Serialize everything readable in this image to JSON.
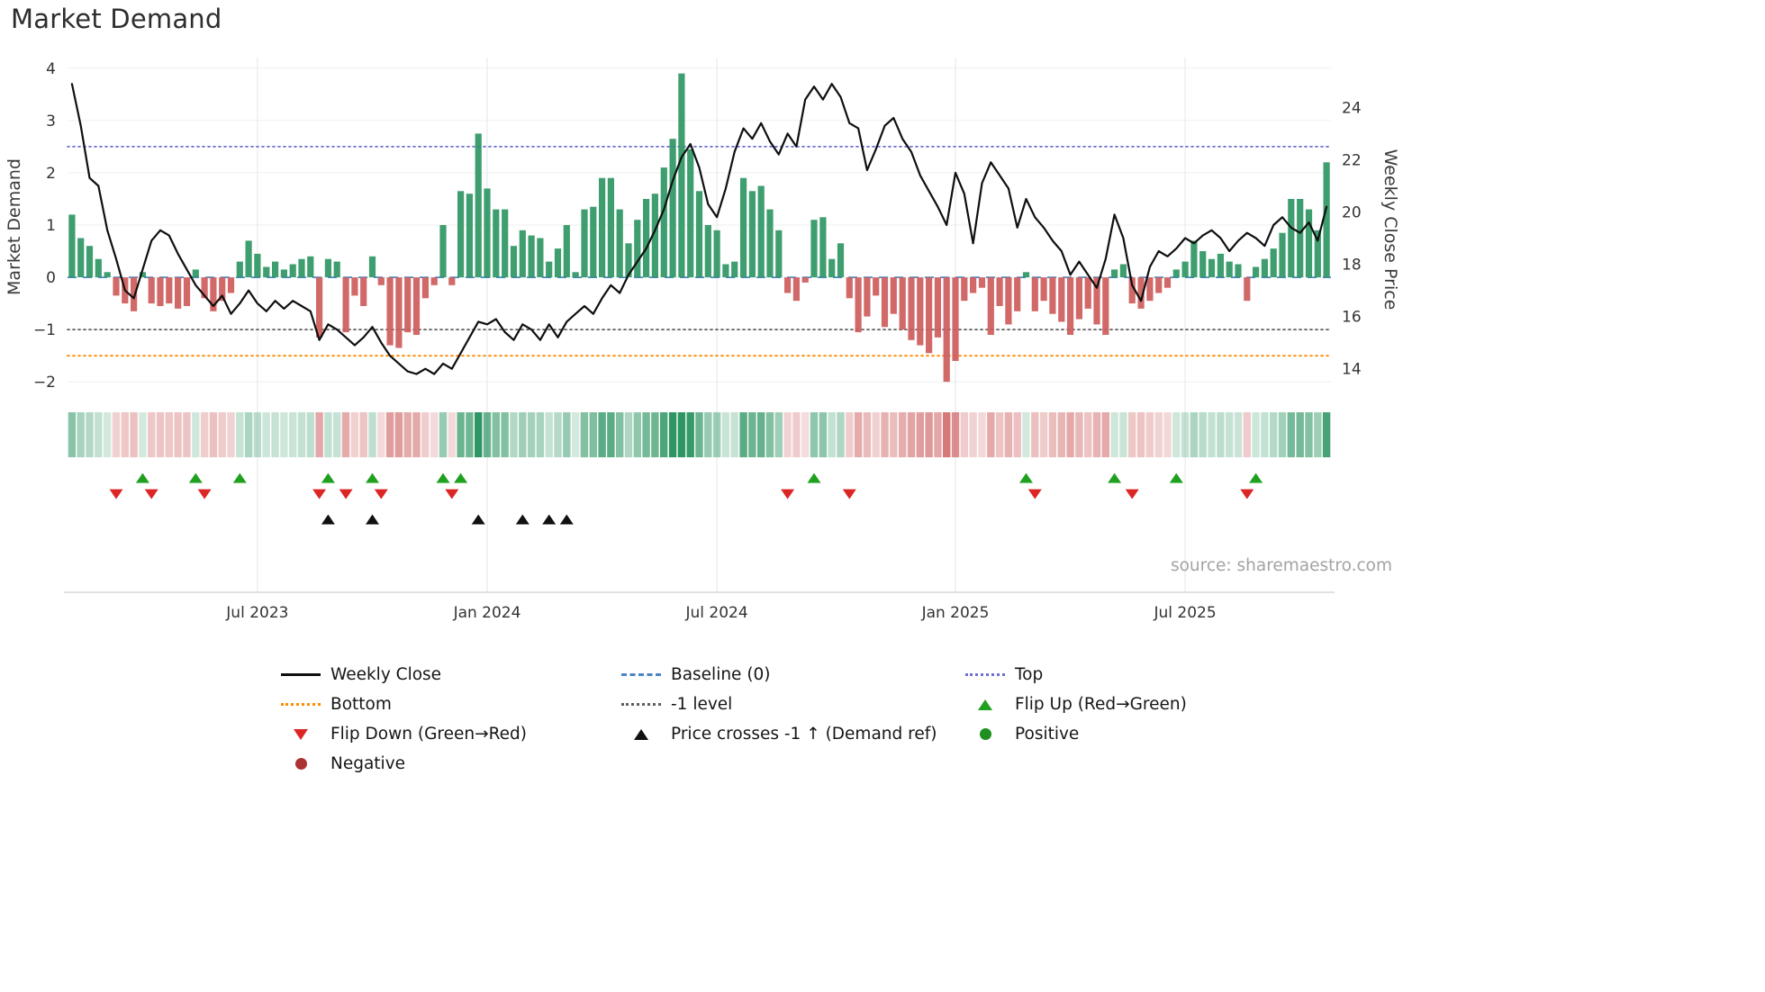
{
  "source_text": "source: sharemaestro.com",
  "chart_data": {
    "type": "bar+line",
    "title": "Market Demand",
    "ylabel_left": "Market Demand",
    "ylabel_right": "Weekly Close Price",
    "ylim_demand": [
      -2.1,
      4.1
    ],
    "ylim_price": [
      13.3,
      25.7
    ],
    "yticks_demand": [
      4,
      3,
      2,
      1,
      0,
      -1,
      -2
    ],
    "yticks_price": [
      24,
      22,
      20,
      18,
      16,
      14
    ],
    "x_axis": {
      "tick_labels": [
        "Jul 2023",
        "Jan 2024",
        "Jul 2024",
        "Jan 2025",
        "Jul 2025"
      ],
      "tick_weeks": [
        21,
        47,
        73,
        100,
        126
      ]
    },
    "levels": {
      "baseline": 0,
      "top": 2.5,
      "minus1_level": -1,
      "bottom": -1.5
    },
    "demand_series": {
      "name": "Market Demand",
      "values": [
        1.2,
        0.75,
        0.6,
        0.35,
        0.1,
        -0.35,
        -0.5,
        -0.65,
        0.1,
        -0.5,
        -0.55,
        -0.5,
        -0.6,
        -0.55,
        0.15,
        -0.4,
        -0.65,
        -0.45,
        -0.3,
        0.3,
        0.7,
        0.45,
        0.2,
        0.3,
        0.15,
        0.25,
        0.35,
        0.4,
        -1.15,
        0.35,
        0.3,
        -1.05,
        -0.35,
        -0.55,
        0.4,
        -0.15,
        -1.3,
        -1.35,
        -1.05,
        -1.1,
        -0.4,
        -0.15,
        1.0,
        -0.15,
        1.65,
        1.6,
        2.75,
        1.7,
        1.3,
        1.3,
        0.6,
        0.9,
        0.8,
        0.75,
        0.3,
        0.55,
        1.0,
        0.1,
        1.3,
        1.35,
        1.9,
        1.9,
        1.3,
        0.65,
        1.1,
        1.5,
        1.6,
        2.1,
        2.65,
        3.9,
        2.45,
        1.65,
        1.0,
        0.9,
        0.25,
        0.3,
        1.9,
        1.65,
        1.75,
        1.3,
        0.9,
        -0.3,
        -0.45,
        -0.1,
        1.1,
        1.15,
        0.35,
        0.65,
        -0.4,
        -1.05,
        -0.75,
        -0.35,
        -0.95,
        -0.7,
        -1.0,
        -1.2,
        -1.3,
        -1.45,
        -1.15,
        -2.0,
        -1.6,
        -0.45,
        -0.3,
        -0.2,
        -1.1,
        -0.55,
        -0.9,
        -0.65,
        0.1,
        -0.65,
        -0.45,
        -0.7,
        -0.85,
        -1.1,
        -0.8,
        -0.6,
        -0.9,
        -1.1,
        0.15,
        0.25,
        -0.5,
        -0.6,
        -0.45,
        -0.3,
        -0.2,
        0.15,
        0.3,
        0.7,
        0.5,
        0.35,
        0.45,
        0.3,
        0.25,
        -0.45,
        0.2,
        0.35,
        0.55,
        0.85,
        1.5,
        1.5,
        1.3,
        0.9,
        2.2
      ]
    },
    "price_series": {
      "name": "Weekly Close",
      "values": [
        24.9,
        23.3,
        21.3,
        21.0,
        19.3,
        18.2,
        17.0,
        16.7,
        17.8,
        18.9,
        19.3,
        19.1,
        18.4,
        17.8,
        17.2,
        16.8,
        16.4,
        16.8,
        16.1,
        16.5,
        17.0,
        16.5,
        16.2,
        16.6,
        16.3,
        16.6,
        16.4,
        16.2,
        15.1,
        15.7,
        15.5,
        15.2,
        14.9,
        15.2,
        15.6,
        15.0,
        14.5,
        14.2,
        13.9,
        13.8,
        14.0,
        13.8,
        14.2,
        14.0,
        14.6,
        15.2,
        15.8,
        15.7,
        15.9,
        15.4,
        15.1,
        15.7,
        15.5,
        15.1,
        15.7,
        15.2,
        15.8,
        16.1,
        16.4,
        16.1,
        16.7,
        17.2,
        16.9,
        17.6,
        18.1,
        18.6,
        19.3,
        20.1,
        21.2,
        22.1,
        22.6,
        21.7,
        20.3,
        19.8,
        20.9,
        22.3,
        23.2,
        22.8,
        23.4,
        22.7,
        22.2,
        23.0,
        22.5,
        24.3,
        24.8,
        24.3,
        24.9,
        24.4,
        23.4,
        23.2,
        21.6,
        22.4,
        23.3,
        23.6,
        22.8,
        22.3,
        21.4,
        20.8,
        20.2,
        19.5,
        21.5,
        20.7,
        18.8,
        21.1,
        21.9,
        21.4,
        20.9,
        19.4,
        20.5,
        19.8,
        19.4,
        18.9,
        18.5,
        17.6,
        18.1,
        17.6,
        17.1,
        18.2,
        19.9,
        19.0,
        17.2,
        16.6,
        17.9,
        18.5,
        18.3,
        18.6,
        19.0,
        18.8,
        19.1,
        19.3,
        19.0,
        18.5,
        18.9,
        19.2,
        19.0,
        18.7,
        19.5,
        19.8,
        19.4,
        19.2,
        19.6,
        18.9,
        20.2
      ]
    },
    "markers": {
      "flip_up_weeks": [
        8,
        14,
        19,
        29,
        34,
        42,
        44,
        84,
        108,
        118,
        125,
        134
      ],
      "flip_down_weeks": [
        5,
        9,
        15,
        28,
        31,
        35,
        43,
        81,
        88,
        109,
        120,
        133
      ],
      "price_cross_weeks": [
        29,
        34,
        46,
        51,
        54,
        56
      ]
    }
  },
  "colors": {
    "bar_positive": "#2e9663",
    "bar_negative": "#cd5c5c",
    "price_line": "#0f0f0f",
    "baseline": "#4a86c5",
    "top_line": "#6f6fd2",
    "minus1_line": "#5f5f5f",
    "bottom_line": "#ff8c00",
    "flip_up": "#1fa01f",
    "flip_down": "#dc2626",
    "price_cross": "#111111",
    "positive_dot": "#1f8f1f",
    "negative_dot": "#ad3333",
    "grid": "#e6e6e6",
    "tick_text": "#333333",
    "source_text_color": "#a3a3a3"
  },
  "legend": {
    "items": [
      {
        "label": "Weekly Close",
        "symbol": "line",
        "color": "#0f0f0f"
      },
      {
        "label": "Baseline (0)",
        "symbol": "dashed",
        "color": "#4a86c5"
      },
      {
        "label": "Top",
        "symbol": "dotted",
        "color": "#6f6fd2"
      },
      {
        "label": "Bottom",
        "symbol": "dotted",
        "color": "#ff8c00"
      },
      {
        "label": "-1 level",
        "symbol": "dotted",
        "color": "#5f5f5f"
      },
      {
        "label": "Flip Up (Red→Green)",
        "symbol": "triangle-up",
        "color": "#1fa01f"
      },
      {
        "label": "Flip Down (Green→Red)",
        "symbol": "triangle-down",
        "color": "#dc2626"
      },
      {
        "label": "Price crosses -1 ↑ (Demand ref)",
        "symbol": "triangle-up",
        "color": "#111111"
      },
      {
        "label": "Positive",
        "symbol": "circle",
        "color": "#1f8f1f"
      },
      {
        "label": "Negative",
        "symbol": "circle",
        "color": "#ad3333"
      }
    ]
  }
}
